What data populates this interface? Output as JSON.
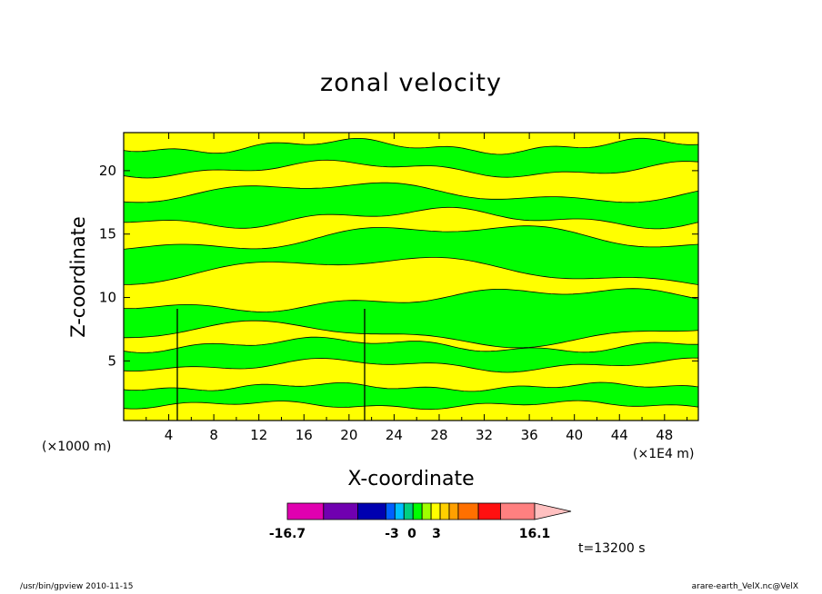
{
  "chart_data": {
    "type": "heatmap",
    "title": "zonal velocity",
    "xlabel": "X-coordinate",
    "ylabel": "Z-coordinate",
    "x_unit": "(×1E4 m)",
    "y_unit": "(×1000 m)",
    "xlim": [
      0,
      51
    ],
    "ylim": [
      0.3,
      23
    ],
    "x_ticks": [
      4,
      8,
      12,
      16,
      20,
      24,
      28,
      32,
      36,
      40,
      44,
      48
    ],
    "y_ticks": [
      5,
      10,
      15,
      20
    ],
    "colorbar": {
      "min": -16.7,
      "max": 16.1,
      "labels": [
        "-16.7",
        "-3",
        "0",
        "3",
        "16.1"
      ],
      "colors": [
        "#e000b0",
        "#7000b0",
        "#0000b0",
        "#0060ff",
        "#00c0ff",
        "#00d080",
        "#00ff00",
        "#a0ff00",
        "#ffff00",
        "#ffd000",
        "#ffa000",
        "#ff7000",
        "#ff1010",
        "#ff8080",
        "#ffc0c0"
      ]
    },
    "colors": {
      "positive": "#ffff00",
      "negative": "#00ff00"
    },
    "time_label": "t=13200 s"
  },
  "footer": {
    "left": "/usr/bin/gpview  2010-11-15",
    "right": "arare-earth_VelX.nc@VelX"
  }
}
